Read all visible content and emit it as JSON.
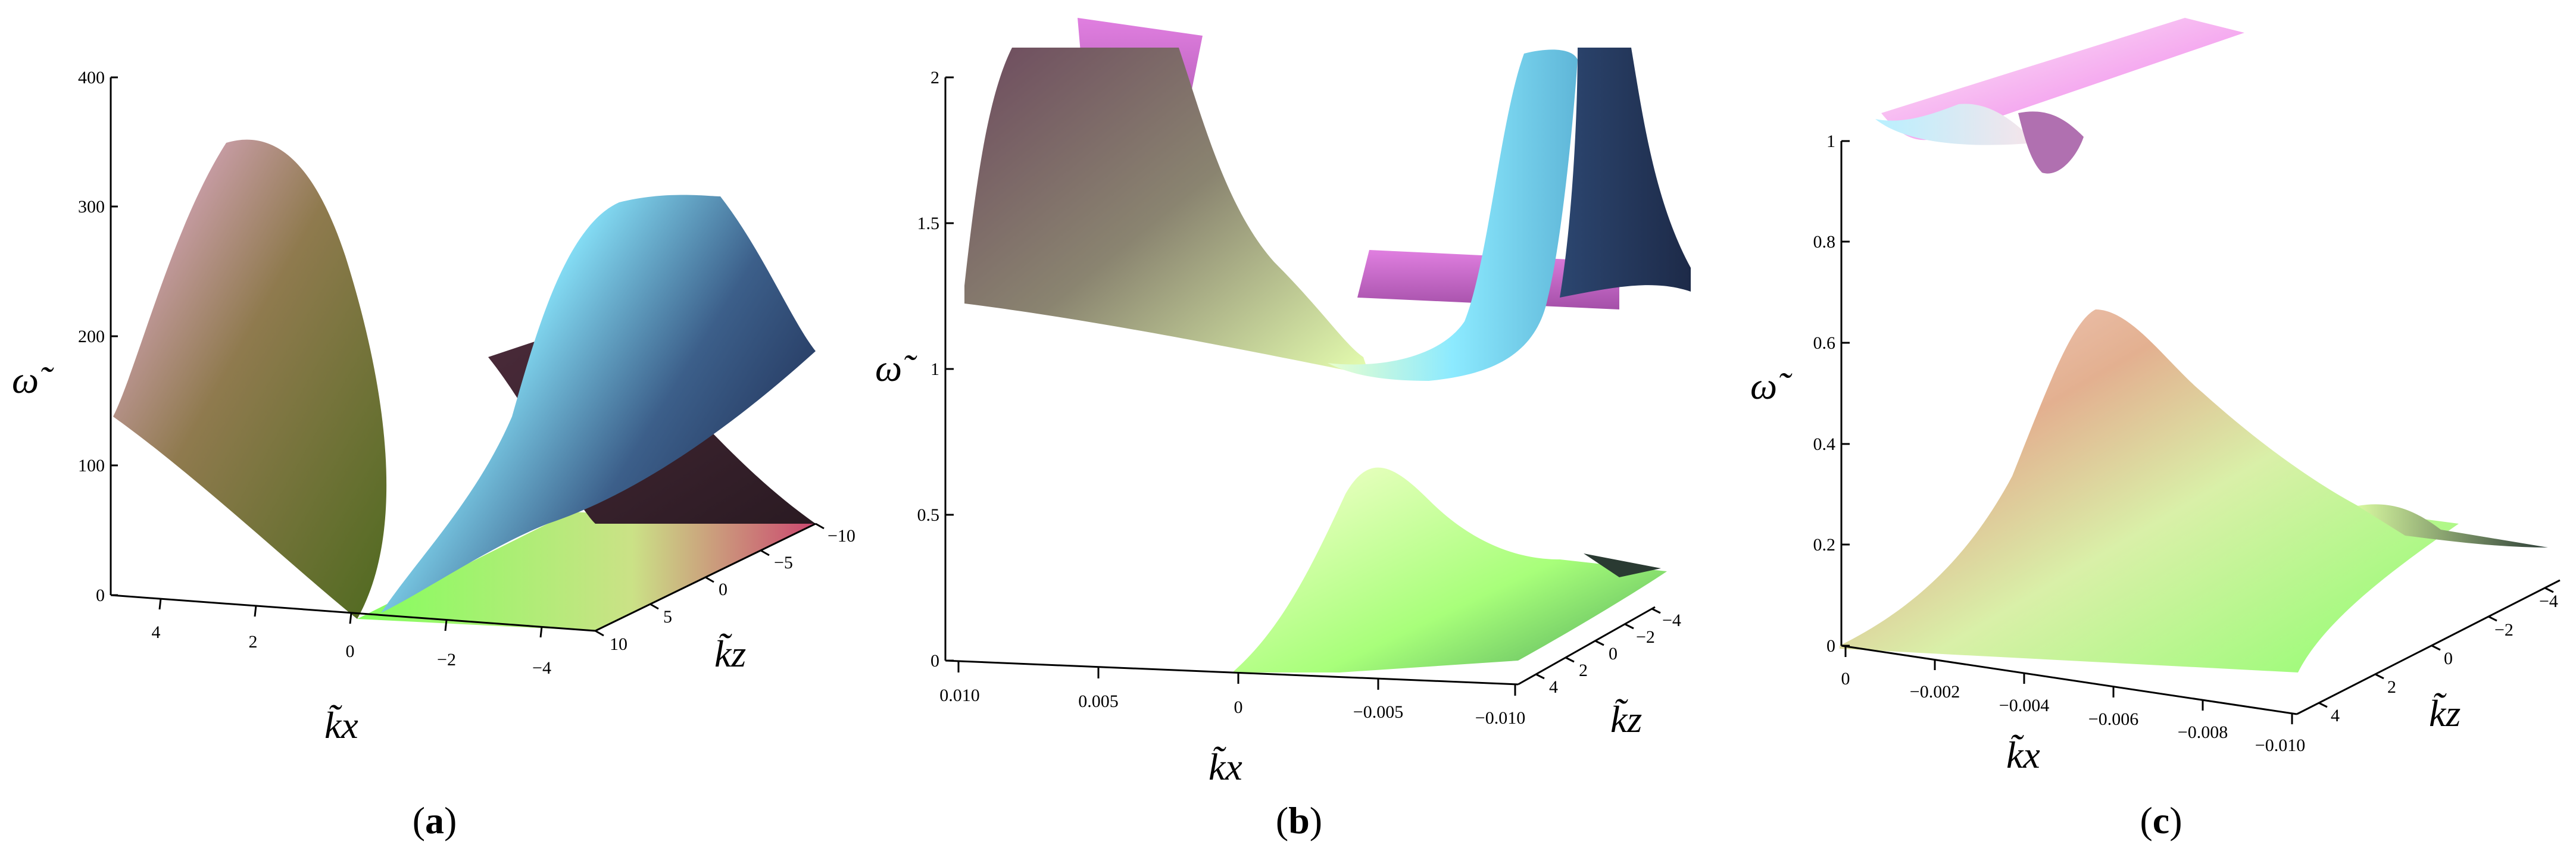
{
  "figure": {
    "panels": [
      {
        "label_open": "(",
        "label_letter": "a",
        "label_close": ")"
      },
      {
        "label_open": "(",
        "label_letter": "b",
        "label_close": ")"
      },
      {
        "label_open": "(",
        "label_letter": "c",
        "label_close": ")"
      }
    ]
  },
  "chart_data": [
    {
      "type": "surface",
      "panel": "a",
      "zlabel": "ω̃",
      "xlabel": "k̃x",
      "ylabel": "k̃z",
      "z_ticks": [
        "0",
        "100",
        "200",
        "300",
        "400"
      ],
      "x_ticks": [
        "4",
        "2",
        "0",
        "−2",
        "−4"
      ],
      "y_ticks": [
        "10",
        "5",
        "0",
        "−5",
        "−10"
      ],
      "zlim": [
        0,
        400
      ],
      "xlim": [
        5,
        -5
      ],
      "ylim": [
        10,
        -10
      ],
      "colors": [
        "#f3b7e8",
        "#7a6f3c",
        "#8be9ff",
        "#22335a",
        "#7cff54",
        "#c83d68"
      ]
    },
    {
      "type": "surface",
      "panel": "b",
      "zlabel": "ω̃",
      "xlabel": "k̃x",
      "ylabel": "k̃z",
      "z_ticks": [
        "0",
        "0.5",
        "1",
        "1.5",
        "2"
      ],
      "x_ticks": [
        "0.010",
        "0.005",
        "0",
        "−0.005",
        "−0.010"
      ],
      "y_ticks": [
        "4",
        "2",
        "0",
        "−2",
        "−4"
      ],
      "zlim": [
        0,
        2
      ],
      "xlim": [
        0.01,
        -0.01
      ],
      "ylim": [
        5,
        -5
      ],
      "colors": [
        "#8a5a7e",
        "#e2ffb8",
        "#8ceaff",
        "#1d3560",
        "#d64fd8",
        "#8dff6a"
      ]
    },
    {
      "type": "surface",
      "panel": "c",
      "zlabel": "ω̃",
      "xlabel": "k̃x",
      "ylabel": "k̃z",
      "z_ticks": [
        "0",
        "0.2",
        "0.4",
        "0.6",
        "0.8",
        "1"
      ],
      "x_ticks": [
        "0",
        "−0.002",
        "−0.004",
        "−0.006",
        "−0.008",
        "−0.010"
      ],
      "y_ticks": [
        "4",
        "2",
        "0",
        "−2",
        "−4"
      ],
      "zlim": [
        0,
        1
      ],
      "xlim": [
        0,
        -0.01
      ],
      "ylim": [
        5,
        -5
      ],
      "colors": [
        "#f4a6ef",
        "#f0c78a",
        "#8cff6c",
        "#2b3c36",
        "#b8f0ff",
        "#f7e4ea"
      ]
    }
  ]
}
